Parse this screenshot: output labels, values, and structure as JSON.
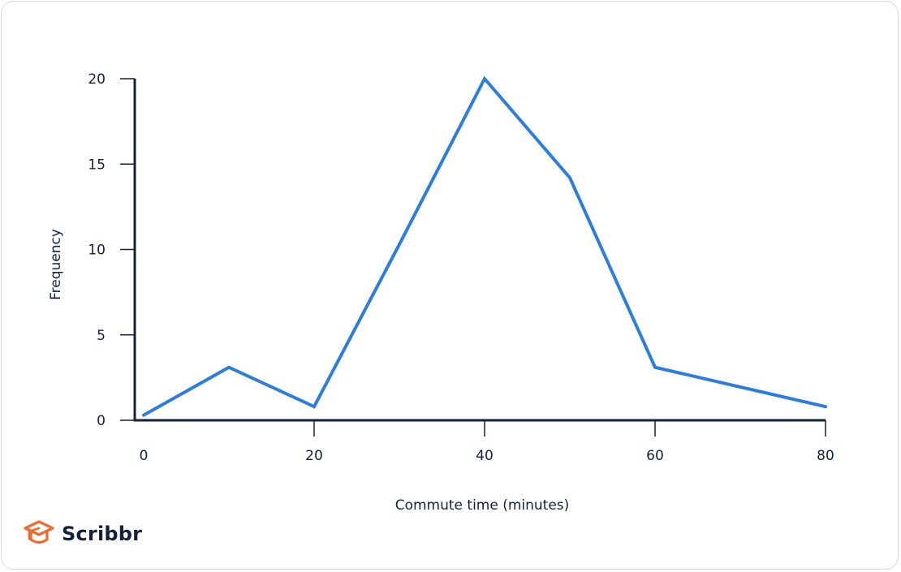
{
  "chart_data": {
    "type": "line",
    "xlabel": "Commute time (minutes)",
    "ylabel": "Frequency",
    "xlim": [
      0,
      80
    ],
    "ylim": [
      0,
      20
    ],
    "xticks": [
      0,
      20,
      40,
      60,
      80
    ],
    "yticks": [
      0,
      5,
      10,
      15,
      20
    ],
    "grid": false,
    "series": [
      {
        "x": [
          0,
          10,
          20,
          30,
          40,
          50,
          60,
          80
        ],
        "y": [
          0.3,
          3.1,
          0.8,
          10.3,
          20,
          14.2,
          3.1,
          0.8
        ],
        "color": "#2b7de0"
      }
    ]
  },
  "brand": {
    "name": "Scribbr",
    "logo_icon": "graduation-cap-icon",
    "logo_color": "#f16a2d"
  },
  "colors": {
    "axis": "#14213d",
    "text": "#14213d"
  }
}
